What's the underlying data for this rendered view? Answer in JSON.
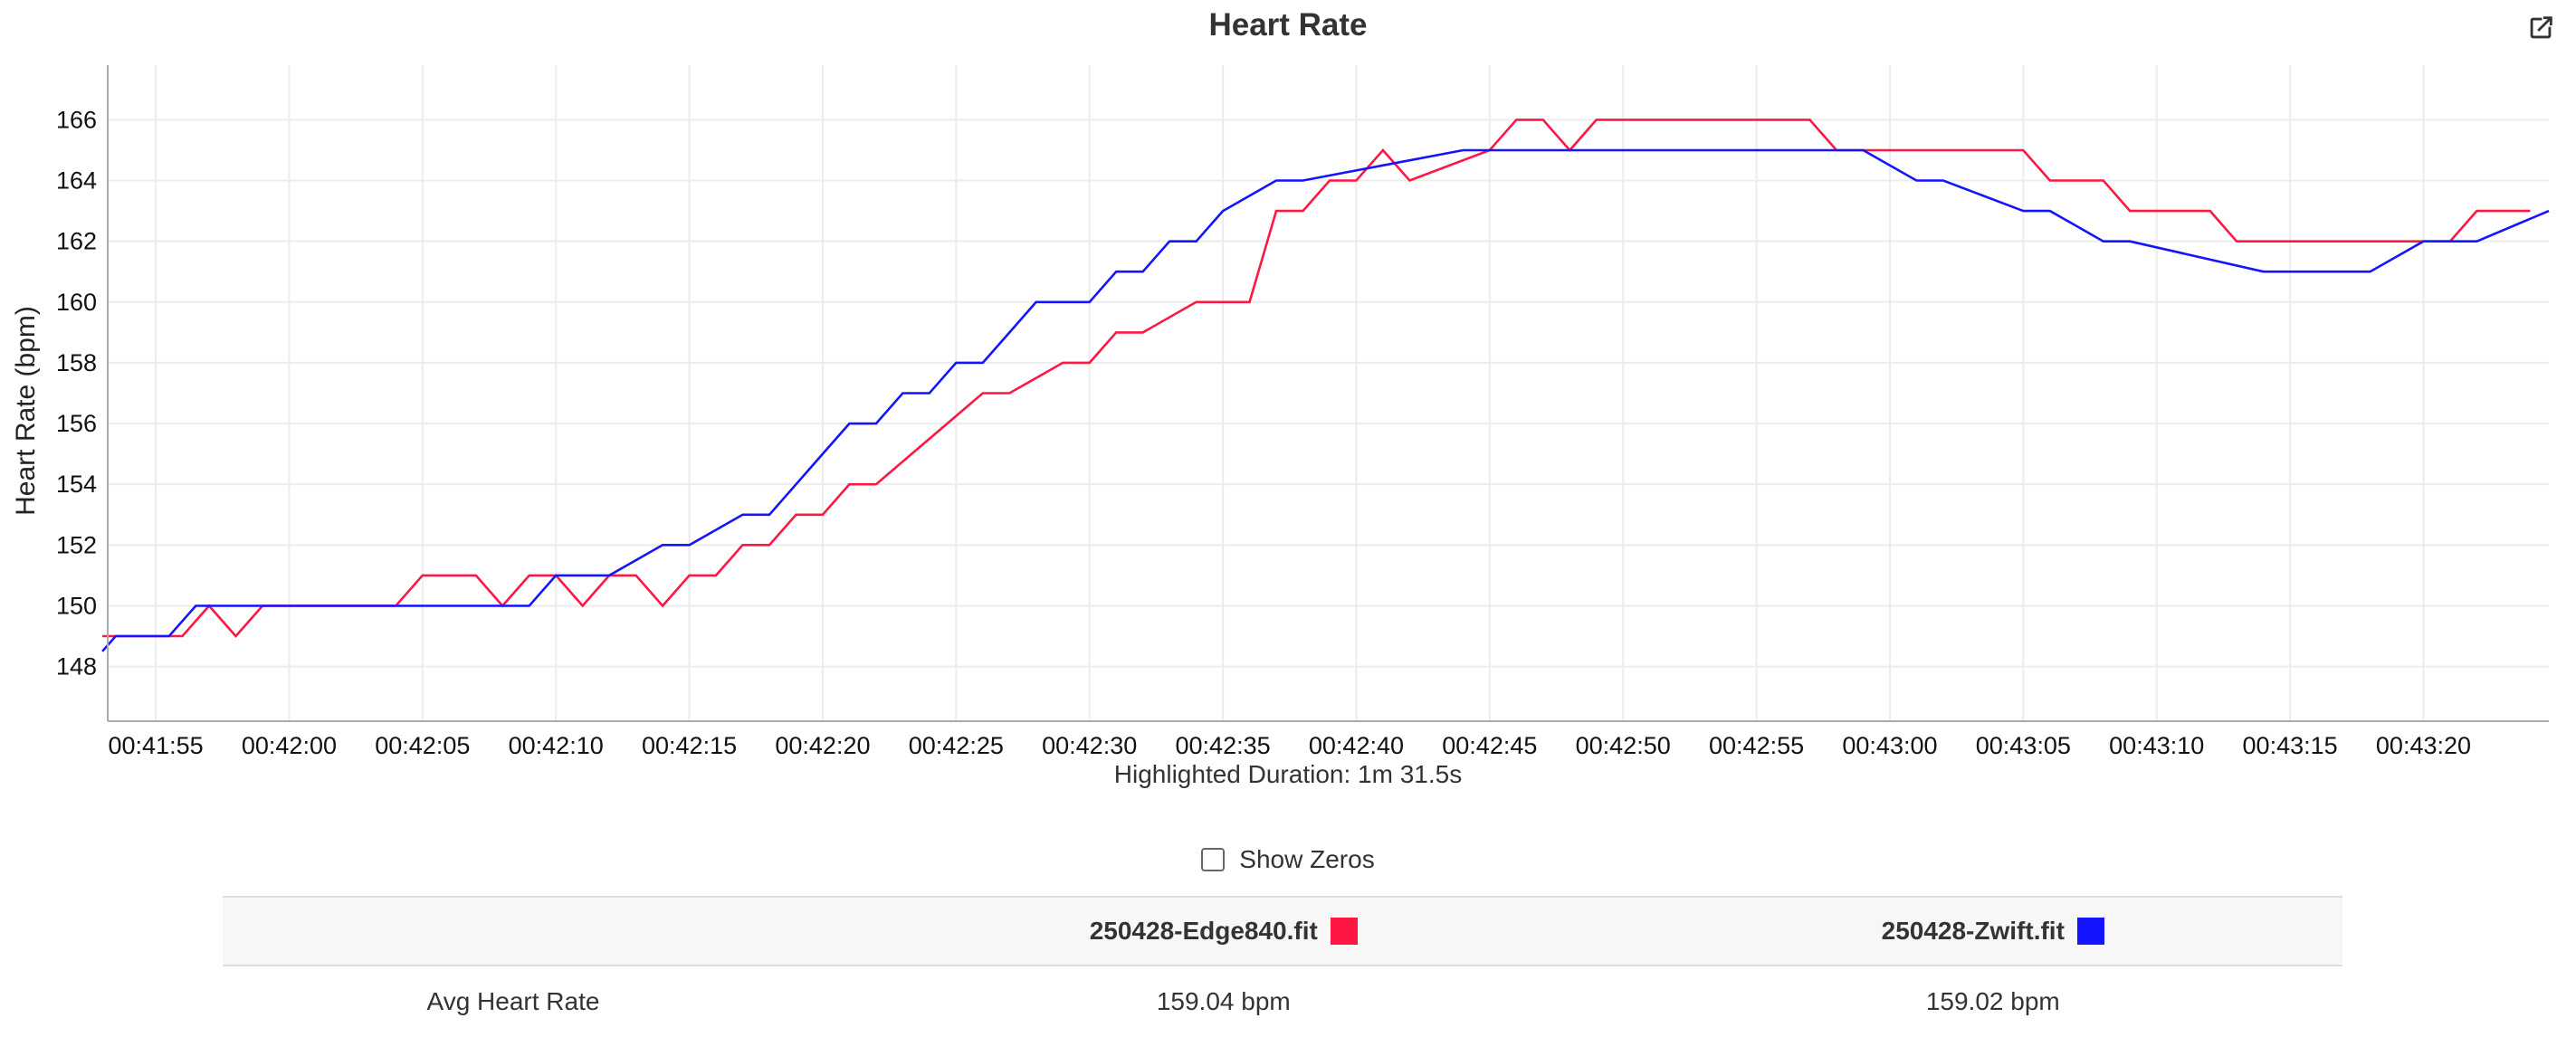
{
  "title": "Heart Rate",
  "edit_icon": "external-edit-icon",
  "highlight_text": "Highlighted Duration: 1m 31.5s",
  "show_zeros_label": "Show Zeros",
  "table": {
    "headers": [
      "",
      "250428-Edge840.fit",
      "250428-Zwift.fit"
    ],
    "row_label": "Avg Heart Rate",
    "values": [
      "159.04 bpm",
      "159.02 bpm"
    ],
    "colors": [
      "#ff1744",
      "#1414ff"
    ]
  },
  "chart_data": {
    "type": "line",
    "title": "Heart Rate",
    "ylabel": "Heart Rate (bpm)",
    "xlabel": "",
    "ylim": [
      146.2,
      167.8
    ],
    "xlim": [
      "00:41:53.2",
      "00:43:24.7"
    ],
    "grid": true,
    "x_tick_labels": [
      "00:41:55",
      "00:42:00",
      "00:42:05",
      "00:42:10",
      "00:42:15",
      "00:42:20",
      "00:42:25",
      "00:42:30",
      "00:42:35",
      "00:42:40",
      "00:42:45",
      "00:42:50",
      "00:42:55",
      "00:43:00",
      "00:43:05",
      "00:43:10",
      "00:43:15",
      "00:43:20"
    ],
    "y_ticks": [
      148,
      150,
      152,
      154,
      156,
      158,
      160,
      162,
      164,
      166
    ],
    "series": [
      {
        "name": "250428-Edge840.fit",
        "color": "#ff1744",
        "x": [
          "00:41:53",
          "00:41:56",
          "00:41:57",
          "00:41:58",
          "00:41:59",
          "00:42:00",
          "00:42:04",
          "00:42:05",
          "00:42:07",
          "00:42:08",
          "00:42:09",
          "00:42:10",
          "00:42:11",
          "00:42:12",
          "00:42:13",
          "00:42:14",
          "00:42:15",
          "00:42:16",
          "00:42:17",
          "00:42:18",
          "00:42:19",
          "00:42:20",
          "00:42:21",
          "00:42:22",
          "00:42:26",
          "00:42:27",
          "00:42:29",
          "00:42:30",
          "00:42:31",
          "00:42:32",
          "00:42:34",
          "00:42:36",
          "00:42:37",
          "00:42:38",
          "00:42:39",
          "00:42:40",
          "00:42:41",
          "00:42:42",
          "00:42:45",
          "00:42:46",
          "00:42:47",
          "00:42:48",
          "00:42:49",
          "00:42:57",
          "00:42:58",
          "00:43:05",
          "00:43:06",
          "00:43:08",
          "00:43:09",
          "00:43:12",
          "00:43:13",
          "00:43:17",
          "00:43:19",
          "00:43:21",
          "00:43:22",
          "00:43:24"
        ],
        "y": [
          149,
          149,
          150,
          149,
          150,
          150,
          150,
          151,
          151,
          150,
          151,
          151,
          150,
          151,
          151,
          150,
          151,
          151,
          152,
          152,
          153,
          153,
          154,
          154,
          157,
          157,
          158,
          158,
          159,
          159,
          160,
          160,
          163,
          163,
          164,
          164,
          165,
          164,
          165,
          166,
          166,
          165,
          166,
          166,
          165,
          165,
          164,
          164,
          163,
          163,
          162,
          162,
          162,
          162,
          163,
          163
        ]
      },
      {
        "name": "250428-Zwift.fit",
        "color": "#1414ff",
        "x": [
          "00:41:53",
          "00:41:53.5",
          "00:41:55.5",
          "00:41:56.5",
          "00:42:02",
          "00:42:07",
          "00:42:08",
          "00:42:09",
          "00:42:10",
          "00:42:11",
          "00:42:12",
          "00:42:14",
          "00:42:15",
          "00:42:17",
          "00:42:18",
          "00:42:19",
          "00:42:20",
          "00:42:21",
          "00:42:22",
          "00:42:23",
          "00:42:24",
          "00:42:25",
          "00:42:26",
          "00:42:27",
          "00:42:28",
          "00:42:29",
          "00:42:30",
          "00:42:31",
          "00:42:32",
          "00:42:33",
          "00:42:34",
          "00:42:35",
          "00:42:37",
          "00:42:38",
          "00:42:44",
          "00:42:58",
          "00:42:59",
          "00:43:01",
          "00:43:02",
          "00:43:05",
          "00:43:06",
          "00:43:08",
          "00:43:09",
          "00:43:14",
          "00:43:17",
          "00:43:18",
          "00:43:20",
          "00:43:21",
          "00:43:22",
          "00:43:24.7"
        ],
        "y": [
          148.5,
          149,
          149,
          150,
          150,
          150,
          150,
          150,
          151,
          151,
          151,
          152,
          152,
          153,
          153,
          154,
          155,
          156,
          156,
          157,
          157,
          158,
          158,
          159,
          160,
          160,
          160,
          161,
          161,
          162,
          162,
          163,
          164,
          164,
          165,
          165,
          165,
          164,
          164,
          163,
          163,
          162,
          162,
          161,
          161,
          161,
          162,
          162,
          162,
          163
        ]
      }
    ]
  }
}
